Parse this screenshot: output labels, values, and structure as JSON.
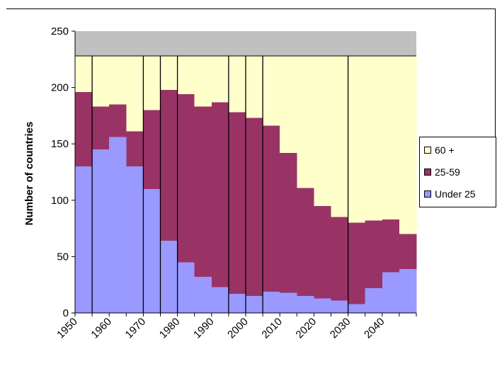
{
  "chart_data": {
    "type": "area",
    "stacked": true,
    "ylabel": "Number of countries",
    "xlabel": "",
    "ylim": [
      0,
      250
    ],
    "yticks": [
      0,
      50,
      100,
      150,
      200,
      250
    ],
    "xtick_labels": [
      "1950",
      "1960",
      "1970",
      "1980",
      "1990",
      "2000",
      "2010",
      "2020",
      "2030",
      "2040"
    ],
    "x": [
      1950,
      1955,
      1960,
      1965,
      1970,
      1975,
      1980,
      1985,
      1990,
      1995,
      2000,
      2005,
      2010,
      2015,
      2020,
      2025,
      2030,
      2035,
      2040,
      2045
    ],
    "total": 228,
    "series": [
      {
        "name": "Under 25",
        "color": "#9999ff",
        "values": [
          130,
          145,
          156,
          130,
          110,
          64,
          45,
          32,
          23,
          17,
          15,
          19,
          18,
          15,
          13,
          11,
          8,
          22,
          36,
          39
        ]
      },
      {
        "name": "25-59",
        "color": "#993366",
        "values": [
          66,
          38,
          29,
          31,
          70,
          134,
          149,
          151,
          164,
          161,
          158,
          147,
          124,
          96,
          82,
          74,
          72,
          60,
          47,
          31
        ]
      },
      {
        "name": "60 +",
        "color": "#ffffcc",
        "values": [
          32,
          45,
          43,
          67,
          48,
          30,
          34,
          45,
          41,
          50,
          55,
          62,
          86,
          117,
          133,
          143,
          148,
          146,
          145,
          158
        ]
      }
    ],
    "top_band_color": "#c0c0c0",
    "vertical_lines_at": [
      1955,
      1970,
      1975,
      1980,
      1995,
      2000,
      2005,
      2030
    ],
    "legend_position": "right"
  }
}
